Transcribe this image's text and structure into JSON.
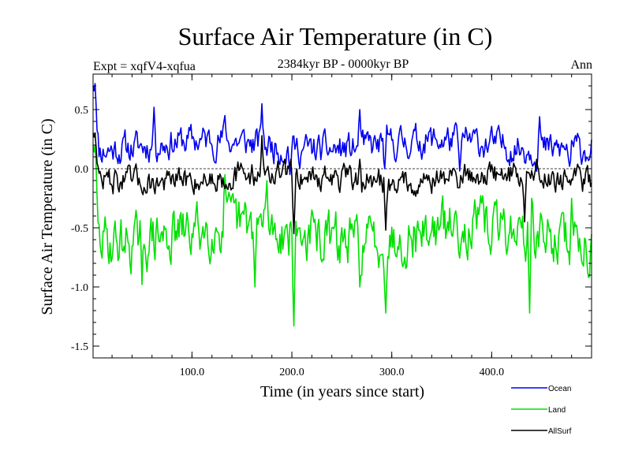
{
  "chart_data": {
    "type": "line",
    "title": "Surface Air Temperature (in C)",
    "subtitle": "2384kyr BP - 0000kyr BP",
    "annotation_left": "Expt = xqfV4-xqfua",
    "annotation_right": "Ann",
    "xlabel": "Time (in years since start)",
    "ylabel": "Surface Air Temperature (in C)",
    "xlim": [
      1,
      500
    ],
    "ylim": [
      -1.6,
      0.8
    ],
    "xticks": [
      100,
      200,
      300,
      400
    ],
    "xtick_labels": [
      "100.0",
      "200.0",
      "300.0",
      "400.0"
    ],
    "yticks": [
      -1.5,
      -1.0,
      -0.5,
      0.0,
      0.5
    ],
    "ytick_labels": [
      "-1.5",
      "-1.0",
      "-0.5",
      "0.0",
      "0.5"
    ],
    "reference_line": 0.0,
    "series": [
      {
        "name": "Ocean",
        "color": "#0000ee",
        "mean": 0.2,
        "amplitude": 0.12,
        "start_value": 0.7,
        "peaks": [
          [
            3,
            0.72
          ],
          [
            62,
            0.52
          ],
          [
            133,
            0.45
          ],
          [
            170,
            0.55
          ],
          [
            268,
            0.5
          ],
          [
            448,
            0.44
          ]
        ],
        "troughs": [
          [
            198,
            -0.05
          ],
          [
            293,
            0.0
          ],
          [
            368,
            -0.02
          ],
          [
            478,
            0.02
          ]
        ]
      },
      {
        "name": "Land",
        "color": "#00e000",
        "mean": -0.55,
        "amplitude": 0.2,
        "start_value": 0.2,
        "peaks": [
          [
            3,
            0.2
          ],
          [
            133,
            -0.05
          ],
          [
            175,
            -0.1
          ],
          [
            440,
            -0.25
          ],
          [
            480,
            -0.25
          ]
        ],
        "troughs": [
          [
            50,
            -0.98
          ],
          [
            163,
            -1.0
          ],
          [
            202,
            -1.33
          ],
          [
            268,
            -1.0
          ],
          [
            294,
            -1.22
          ],
          [
            438,
            -1.22
          ],
          [
            497,
            -0.92
          ]
        ]
      },
      {
        "name": "AllSurf",
        "color": "#000000",
        "mean": -0.08,
        "amplitude": 0.1,
        "start_value": 0.3,
        "peaks": [
          [
            3,
            0.3
          ],
          [
            170,
            0.28
          ],
          [
            268,
            0.08
          ],
          [
            445,
            0.08
          ]
        ],
        "troughs": [
          [
            202,
            -0.55
          ],
          [
            294,
            -0.52
          ],
          [
            433,
            -0.45
          ]
        ]
      }
    ],
    "legend_position": "bottom-right"
  }
}
